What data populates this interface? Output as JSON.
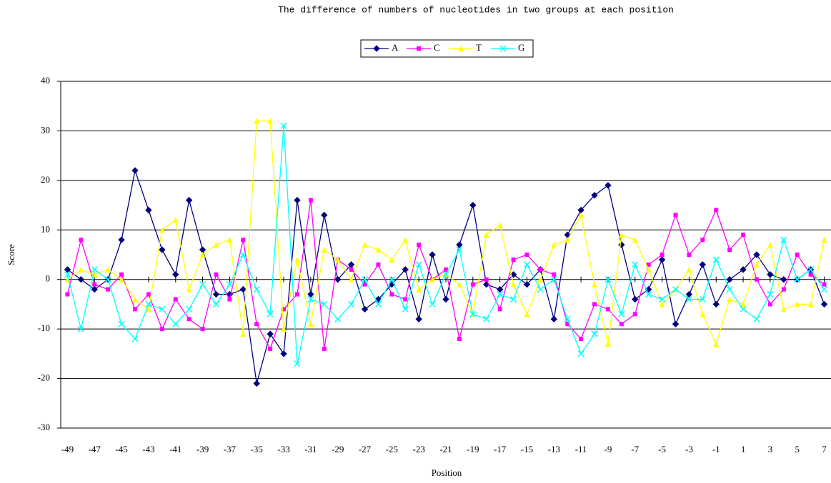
{
  "chart_data": {
    "type": "line",
    "title": "The difference of numbers of nucleotides in two groups at each position",
    "x_label": "Position",
    "y_label": "Score",
    "x": [
      -49,
      -48,
      -47,
      -46,
      -45,
      -44,
      -43,
      -42,
      -41,
      -40,
      -39,
      -38,
      -37,
      -36,
      -35,
      -34,
      -33,
      -32,
      -31,
      -30,
      -29,
      -28,
      -27,
      -26,
      -25,
      -24,
      -23,
      -22,
      -21,
      -20,
      -19,
      -18,
      -17,
      -16,
      -15,
      -14,
      -13,
      -12,
      -11,
      -10,
      -9,
      -8,
      -7,
      -6,
      -5,
      -4,
      -3,
      -2,
      -1,
      0,
      1,
      2,
      3,
      4,
      5,
      6,
      7
    ],
    "xlim": [
      -49.5,
      7.5
    ],
    "xticks": [
      -49,
      -47,
      -45,
      -43,
      -41,
      -39,
      -37,
      -35,
      -33,
      -31,
      -29,
      -27,
      -25,
      -23,
      -21,
      -19,
      -17,
      -15,
      -13,
      -11,
      -9,
      -7,
      -5,
      -3,
      -1,
      1,
      3,
      5,
      7
    ],
    "ylim": [
      -30,
      40
    ],
    "yticks": [
      -30,
      -20,
      -10,
      0,
      10,
      20,
      30,
      40
    ],
    "grid": true,
    "legend": "top",
    "series": [
      {
        "name": "A",
        "color": "#000080",
        "marker": "diamond",
        "values": [
          2,
          0,
          -2,
          0,
          8,
          22,
          14,
          6,
          1,
          16,
          6,
          -3,
          -3,
          -2,
          -21,
          -11,
          -15,
          16,
          -3,
          13,
          0,
          3,
          -6,
          -4,
          -1,
          2,
          -8,
          5,
          -4,
          7,
          15,
          -1,
          -2,
          1,
          -1,
          2,
          -8,
          9,
          14,
          17,
          19,
          7,
          -4,
          -2,
          4,
          -9,
          -3,
          3,
          -5,
          0,
          2,
          5,
          1,
          0,
          0,
          2,
          -5
        ]
      },
      {
        "name": "C",
        "color": "#ff00ff",
        "marker": "square",
        "values": [
          -3,
          8,
          -1,
          -2,
          1,
          -6,
          -3,
          -10,
          -4,
          -8,
          -10,
          1,
          -4,
          8,
          -9,
          -14,
          -6,
          -3,
          16,
          -14,
          4,
          2,
          -1,
          3,
          -3,
          -4,
          7,
          0,
          2,
          -12,
          -1,
          0,
          -6,
          4,
          5,
          2,
          1,
          -9,
          -12,
          -5,
          -6,
          -9,
          -7,
          3,
          5,
          13,
          5,
          8,
          14,
          6,
          9,
          0,
          -5,
          -2,
          5,
          1,
          -1
        ]
      },
      {
        "name": "T",
        "color": "#ffff00",
        "marker": "triangle",
        "values": [
          0,
          2,
          1,
          2,
          0,
          -4,
          -6,
          10,
          12,
          -2,
          5,
          7,
          8,
          -11,
          32,
          32,
          -10,
          4,
          -9,
          6,
          4,
          0,
          7,
          6,
          4,
          8,
          -2,
          0,
          1,
          -1,
          -7,
          9,
          11,
          -1,
          -7,
          0,
          7,
          8,
          13,
          -1,
          -13,
          9,
          8,
          2,
          -5,
          -2,
          2,
          -7,
          -13,
          -4,
          -5,
          3,
          7,
          -6,
          -5,
          -5,
          8
        ]
      },
      {
        "name": "G",
        "color": "#00ffff",
        "marker": "x",
        "values": [
          1,
          -10,
          2,
          0,
          -9,
          -12,
          -5,
          -6,
          -9,
          -6,
          -1,
          -5,
          -1,
          5,
          -2,
          -7,
          31,
          -17,
          -4,
          -5,
          -8,
          -5,
          0,
          -5,
          0,
          -6,
          3,
          -5,
          1,
          6,
          -7,
          -8,
          -3,
          -4,
          3,
          -2,
          0,
          -8,
          -15,
          -11,
          0,
          -7,
          3,
          -3,
          -4,
          -2,
          -4,
          -4,
          4,
          -2,
          -6,
          -8,
          -3,
          8,
          0,
          2,
          -2
        ]
      }
    ]
  }
}
